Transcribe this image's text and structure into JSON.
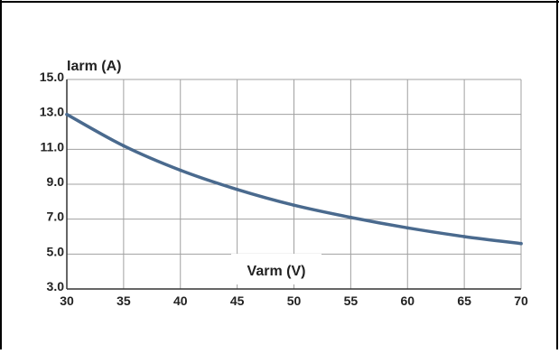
{
  "chart_data": {
    "type": "line",
    "ylabel": "Iarm (A)",
    "xlabel": "Varm (V)",
    "xlim": [
      30,
      70
    ],
    "ylim": [
      3.0,
      15.0
    ],
    "x_ticks": [
      "30",
      "35",
      "40",
      "45",
      "50",
      "55",
      "60",
      "65",
      "70"
    ],
    "y_ticks": [
      "15.0",
      "13.0",
      "11.0",
      "9.0",
      "7.0",
      "5.0",
      "3.0"
    ],
    "grid": true,
    "series": [
      {
        "x": [
          30,
          35,
          40,
          45,
          50,
          55,
          60,
          65,
          70
        ],
        "y": [
          13.0,
          11.2,
          9.8,
          8.7,
          7.8,
          7.1,
          6.5,
          6.0,
          5.6
        ]
      }
    ]
  },
  "colors": {
    "line": "#4a6a8e",
    "grid": "#a0a0a0",
    "frame": "#000000"
  }
}
